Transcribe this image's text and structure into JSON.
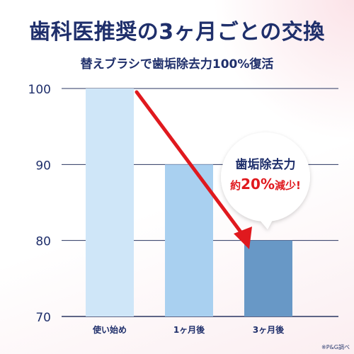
{
  "title": "歯科医推奨の3ヶ月ごとの交換",
  "subtitle": "替えブラシで歯垢除去力100%復活",
  "note": "※P&G調べ",
  "callout": {
    "line1": "歯垢除去力",
    "line2_prefix": "約",
    "line2_value": "20%",
    "line2_suffix": "減少!"
  },
  "colors": {
    "title": "#1f2f6b",
    "bar_1": "#cfe6f8",
    "bar_2": "#a9d0f0",
    "bar_3": "#6898c6",
    "arrow": "#e0191e",
    "grid": "#2a3560"
  },
  "chart_data": {
    "type": "bar",
    "categories": [
      "使い始め",
      "1ヶ月後",
      "3ヶ月後"
    ],
    "values": [
      100,
      90,
      80
    ],
    "yticks": [
      70,
      80,
      90,
      100
    ],
    "ylim": [
      70,
      100
    ],
    "xlabel": "",
    "ylabel": "",
    "grid": true,
    "annotation": "歯垢除去力 約20%減少!"
  }
}
